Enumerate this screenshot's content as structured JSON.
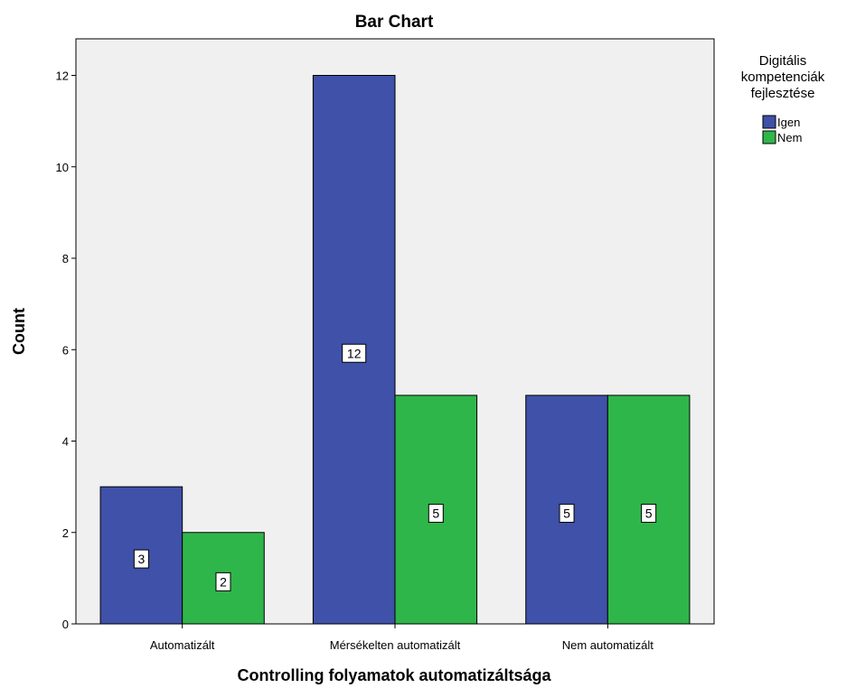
{
  "chart_data": {
    "type": "bar",
    "title": "Bar Chart",
    "xlabel": "Controlling folyamatok automatizáltsága",
    "ylabel": "Count",
    "categories": [
      "Automatizált",
      "Mérsékelten automatizált",
      "Nem automatizált"
    ],
    "series": [
      {
        "name": "Igen",
        "values": [
          3,
          12,
          5
        ],
        "color": "#3f51a8"
      },
      {
        "name": "Nem",
        "values": [
          2,
          5,
          5
        ],
        "color": "#2fb64a"
      }
    ],
    "data_labels": [
      [
        "3",
        "12",
        "5"
      ],
      [
        "2",
        "5",
        "5"
      ]
    ],
    "ylim": [
      0,
      12.8
    ],
    "yticks": [
      0,
      2,
      4,
      6,
      8,
      10,
      12
    ],
    "grid": false,
    "plot_background": "#f0f0f0",
    "legend": {
      "title_lines": [
        "Digitális",
        "kompetenciák",
        "fejlesztése"
      ],
      "placement": "right"
    }
  }
}
